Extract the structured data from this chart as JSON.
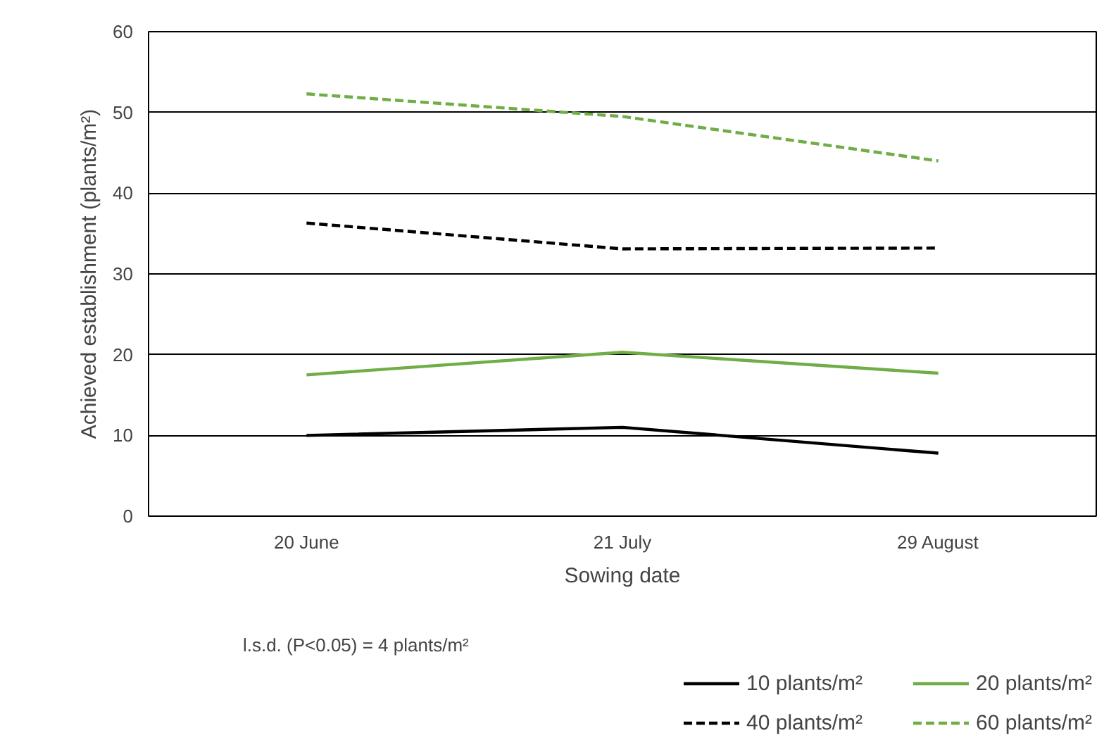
{
  "chart_data": {
    "type": "line",
    "xlabel": "Sowing date",
    "ylabel": "Achieved establishment (plants/m²)",
    "categories": [
      "20 June",
      "21 July",
      "29 August"
    ],
    "series": [
      {
        "name": "10 plants/m²",
        "color": "#000000",
        "line_style": "solid",
        "values": [
          10.0,
          11.0,
          7.8
        ]
      },
      {
        "name": "20 plants/m²",
        "color": "#70ad47",
        "line_style": "solid",
        "values": [
          17.5,
          20.3,
          17.7
        ]
      },
      {
        "name": "40 plants/m²",
        "color": "#000000",
        "line_style": "dashed",
        "values": [
          36.3,
          33.1,
          33.2
        ]
      },
      {
        "name": "60 plants/m²",
        "color": "#70ad47",
        "line_style": "dashed",
        "values": [
          52.3,
          49.5,
          44.0
        ]
      }
    ],
    "ylim": [
      0,
      60
    ],
    "yticks": [
      0,
      10,
      20,
      30,
      40,
      50,
      60
    ],
    "grid": "y",
    "legend": "bottom right",
    "marker": "none",
    "annotations": [
      "l.s.d. (P<0.05) = 4 plants/m²"
    ]
  }
}
